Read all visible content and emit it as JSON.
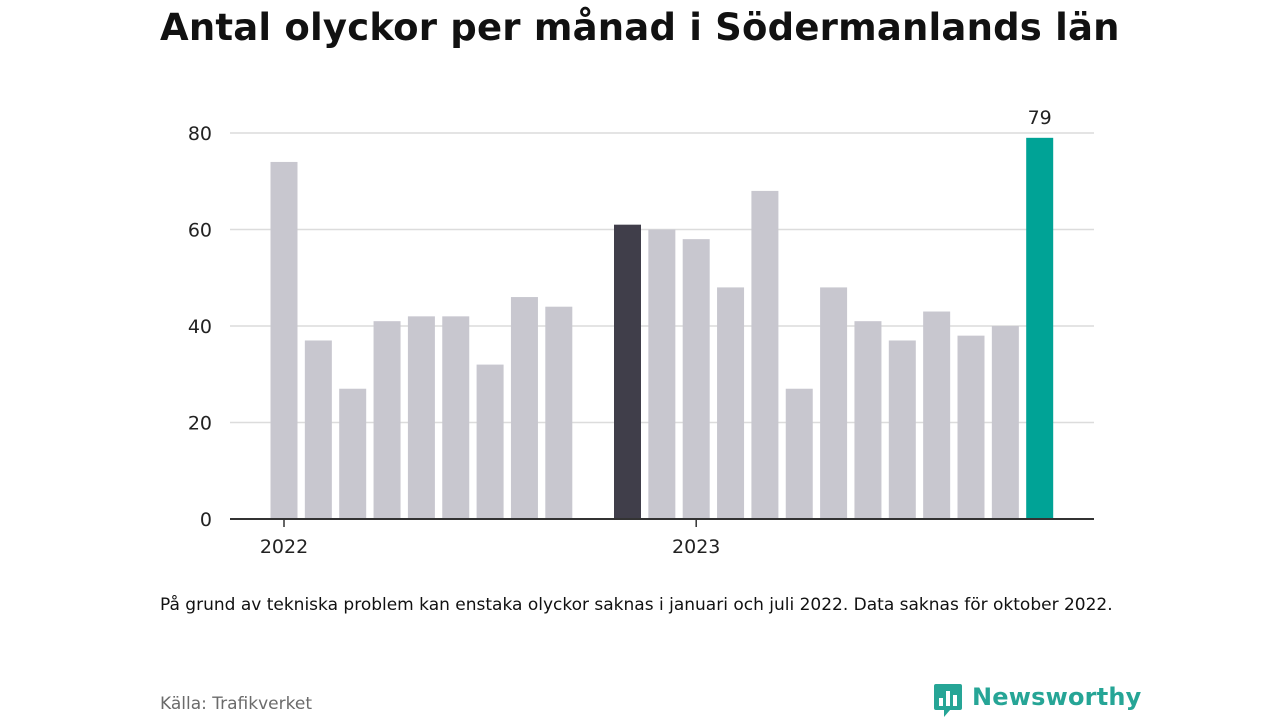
{
  "title": "Antal olyckor per månad i Södermanlands län",
  "note": "På grund av tekniska problem kan enstaka olyckor saknas i januari och juli 2022. Data saknas för oktober 2022.",
  "source": "Källa: Trafikverket",
  "brand": {
    "name": "Newsworthy",
    "icon": "newsworthy-logo-icon"
  },
  "colors": {
    "bar": "#c8c7cf",
    "bar_highlight_year": "#403e4a",
    "bar_latest": "#00a396",
    "grid": "#dcdcdc",
    "axis": "#333333",
    "text": "#222222",
    "brand": "#26a596"
  },
  "chart_data": {
    "type": "bar",
    "title": "Antal olyckor per månad i Södermanlands län",
    "xlabel": "",
    "ylabel": "",
    "ylim": [
      0,
      80
    ],
    "yticks": [
      0,
      20,
      40,
      60,
      80
    ],
    "grid": true,
    "legend": "none",
    "x_tick_labels": [
      {
        "label": "2022",
        "at": "2022-01"
      },
      {
        "label": "2023",
        "at": "2023-01"
      }
    ],
    "bars": [
      {
        "month": "2022-01",
        "value": 74,
        "style": "bar"
      },
      {
        "month": "2022-02",
        "value": 37,
        "style": "bar"
      },
      {
        "month": "2022-03",
        "value": 27,
        "style": "bar"
      },
      {
        "month": "2022-04",
        "value": 41,
        "style": "bar"
      },
      {
        "month": "2022-05",
        "value": 42,
        "style": "bar"
      },
      {
        "month": "2022-06",
        "value": 42,
        "style": "bar"
      },
      {
        "month": "2022-07",
        "value": 32,
        "style": "bar"
      },
      {
        "month": "2022-08",
        "value": 46,
        "style": "bar"
      },
      {
        "month": "2022-09",
        "value": 44,
        "style": "bar"
      },
      {
        "month": "2022-10",
        "value": null,
        "style": "bar"
      },
      {
        "month": "2022-11",
        "value": 61,
        "style": "bar_highlight_year"
      },
      {
        "month": "2022-12",
        "value": 60,
        "style": "bar"
      },
      {
        "month": "2023-01",
        "value": 58,
        "style": "bar"
      },
      {
        "month": "2023-02",
        "value": 48,
        "style": "bar"
      },
      {
        "month": "2023-03",
        "value": 68,
        "style": "bar"
      },
      {
        "month": "2023-04",
        "value": 27,
        "style": "bar"
      },
      {
        "month": "2023-05",
        "value": 48,
        "style": "bar"
      },
      {
        "month": "2023-06",
        "value": 41,
        "style": "bar"
      },
      {
        "month": "2023-07",
        "value": 37,
        "style": "bar"
      },
      {
        "month": "2023-08",
        "value": 43,
        "style": "bar"
      },
      {
        "month": "2023-09",
        "value": 38,
        "style": "bar"
      },
      {
        "month": "2023-10",
        "value": 40,
        "style": "bar"
      },
      {
        "month": "2023-11",
        "value": 79,
        "style": "bar_latest",
        "label": "79"
      }
    ]
  }
}
